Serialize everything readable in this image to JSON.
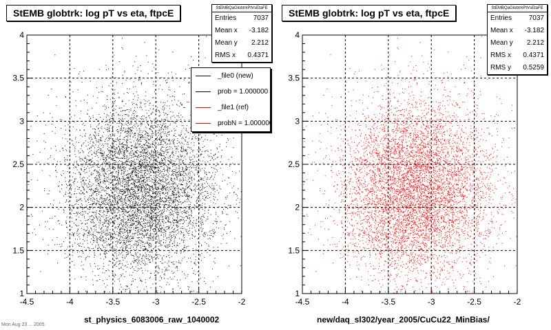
{
  "footer": "Mon Aug 23 ... 2005",
  "panels": [
    {
      "title": "StEMB globtrk: log pT vs eta, ftpcE",
      "stats": {
        "name": "StEMBQaGlobtrkPtVsEtaFE",
        "rows": [
          {
            "label": "Entries",
            "value": "7037"
          },
          {
            "label": "Mean x",
            "value": "-3.182"
          },
          {
            "label": "Mean y",
            "value": "2.212"
          },
          {
            "label": "RMS x",
            "value": "0.4371"
          }
        ]
      },
      "legend": [
        {
          "label": "_file0 (new)",
          "color": "#000000"
        },
        {
          "label": "prob = 1.000000",
          "color": "#000000"
        },
        {
          "label": "_file1 (ref)",
          "color": "#ff0000"
        },
        {
          "label": "probN = 1.000000",
          "color": "#ff0000"
        }
      ],
      "xlabel": "st_physics_6083006_raw_1040002"
    },
    {
      "title": "StEMB globtrk: log pT vs eta, ftpcE",
      "stats": {
        "name": "StEMBQaGlobtrkPtVsEtaFE",
        "rows": [
          {
            "label": "Entries",
            "value": "7037"
          },
          {
            "label": "Mean x",
            "value": "-3.182"
          },
          {
            "label": "Mean y",
            "value": "2.212"
          },
          {
            "label": "RMS x",
            "value": "0.4371"
          },
          {
            "label": "RMS y",
            "value": "0.5259"
          }
        ]
      },
      "xlabel": "new/daq_sl302/year_2005/CuCu22_MinBias/"
    }
  ],
  "chart_data": [
    {
      "type": "scatter",
      "title": "StEMB globtrk: log pT vs eta, ftpcE",
      "xlabel": "st_physics_6083006_raw_1040002",
      "ylabel": "",
      "xlim": [
        -4.5,
        -2
      ],
      "ylim": [
        1,
        4
      ],
      "xticks": [
        "-4.5",
        "-4",
        "-3.5",
        "-3",
        "-2.5",
        "-2"
      ],
      "yticks": [
        "1",
        "1.5",
        "2",
        "2.5",
        "3",
        "3.5",
        "4"
      ],
      "grid": true,
      "point_color": "#000000",
      "entries": 7037,
      "mean": [
        -3.182,
        2.212
      ],
      "rms": [
        0.4371,
        0.5259
      ]
    },
    {
      "type": "scatter",
      "title": "StEMB globtrk: log pT vs eta, ftpcE",
      "xlabel": "new/daq_sl302/year_2005/CuCu22_MinBias/",
      "ylabel": "",
      "xlim": [
        -4.5,
        -2
      ],
      "ylim": [
        1,
        4
      ],
      "xticks": [
        "-4.5",
        "-4",
        "-3.5",
        "-3",
        "-2.5",
        "-2"
      ],
      "yticks": [
        "1",
        "1.5",
        "2",
        "2.5",
        "3",
        "3.5",
        "4"
      ],
      "grid": true,
      "point_color": "#ff0000",
      "entries": 7037,
      "mean": [
        -3.182,
        2.212
      ],
      "rms": [
        0.4371,
        0.5259
      ]
    }
  ]
}
